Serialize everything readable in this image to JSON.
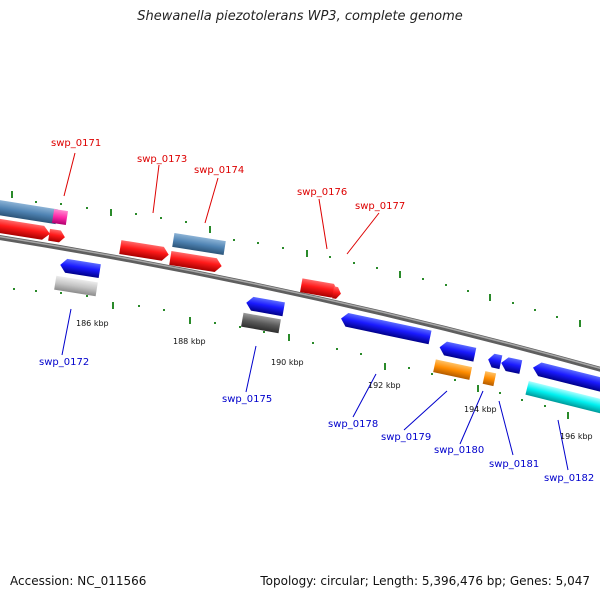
{
  "title": "Shewanella piezotolerans WP3, complete genome",
  "footer": {
    "accession": "Accession: NC_011566",
    "topology": "Topology: circular; Length: 5,396,476 bp; Genes: 5,047"
  },
  "colors": {
    "backbone": "#7a7a7a",
    "tick": "#2a8a2a",
    "forward_label": "#dd0000",
    "reverse_label": "#0000cc",
    "scale_label": "#111111"
  },
  "scale_labels": [
    "186 kbp",
    "188 kbp",
    "190 kbp",
    "192 kbp",
    "194 kbp",
    "196 kbp"
  ],
  "genes": [
    {
      "name": "swp_0171",
      "strand": "forward"
    },
    {
      "name": "swp_0172",
      "strand": "reverse"
    },
    {
      "name": "swp_0173",
      "strand": "forward"
    },
    {
      "name": "swp_0174",
      "strand": "forward"
    },
    {
      "name": "swp_0175",
      "strand": "reverse"
    },
    {
      "name": "swp_0176",
      "strand": "forward"
    },
    {
      "name": "swp_0177",
      "strand": "forward"
    },
    {
      "name": "swp_0178",
      "strand": "reverse"
    },
    {
      "name": "swp_0179",
      "strand": "reverse"
    },
    {
      "name": "swp_0180",
      "strand": "reverse"
    },
    {
      "name": "swp_0181",
      "strand": "reverse"
    },
    {
      "name": "swp_0182",
      "strand": "reverse"
    }
  ]
}
